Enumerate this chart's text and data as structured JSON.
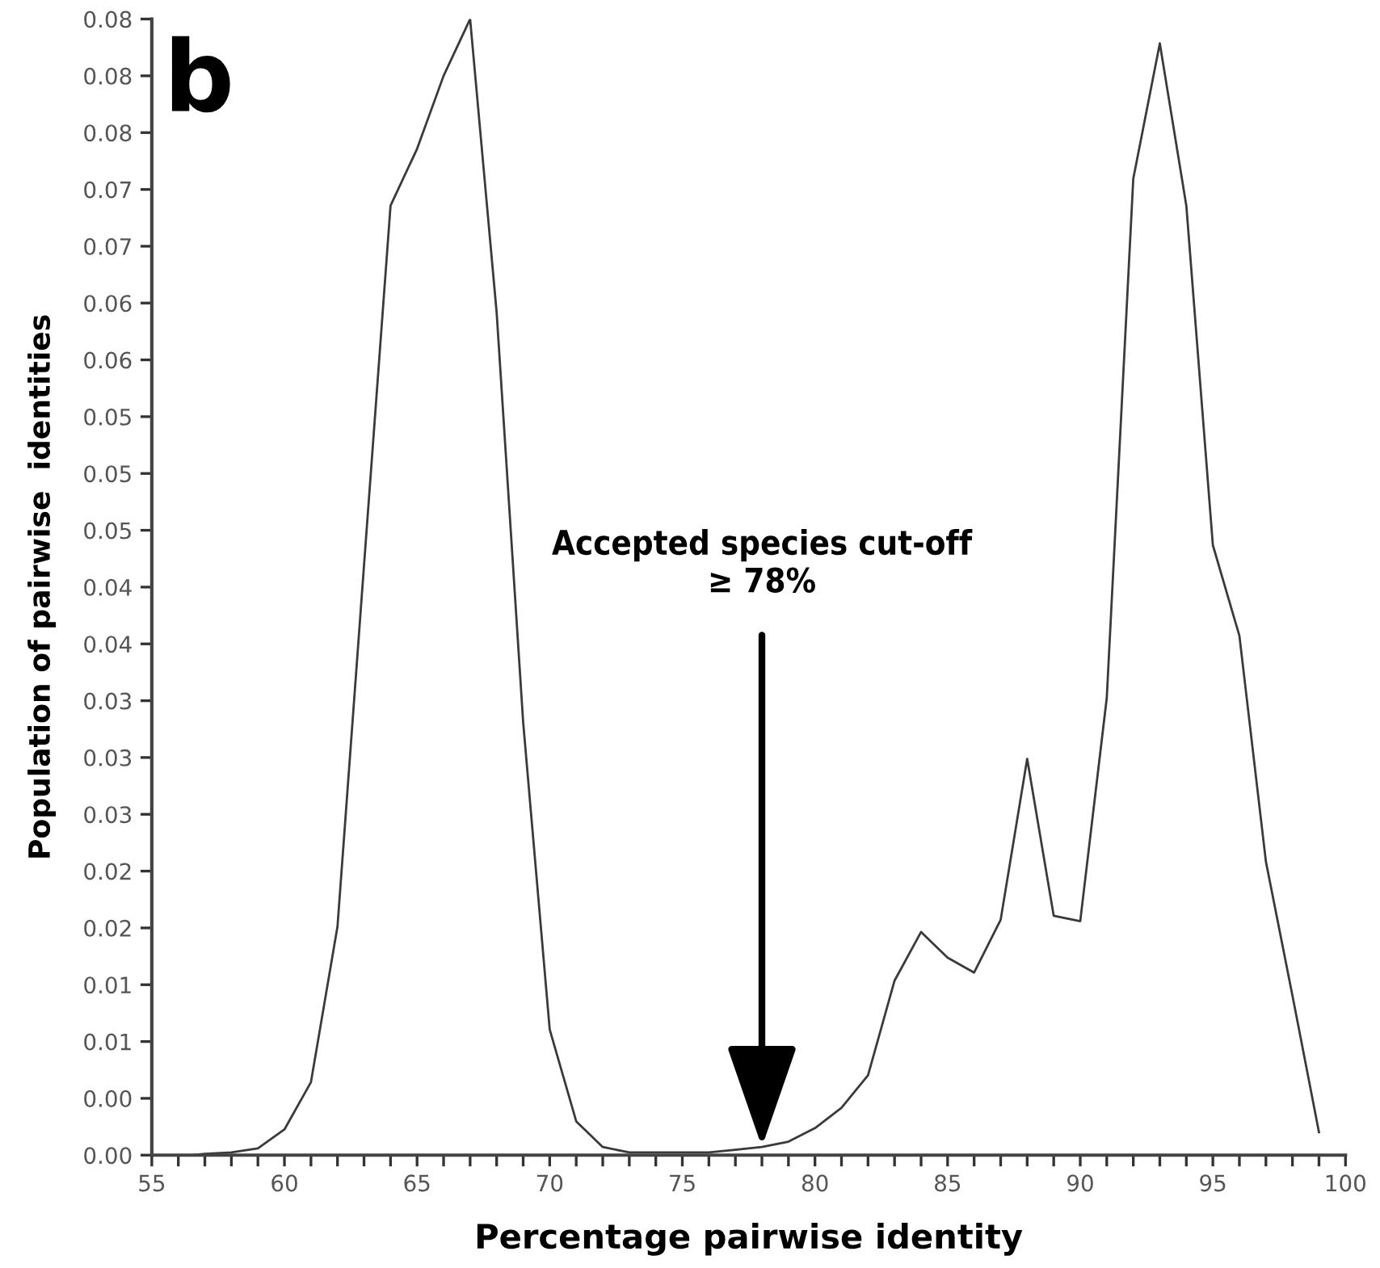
{
  "chart_data": {
    "type": "line",
    "xlabel": "Percentage pairwise identity",
    "ylabel": "Population of pairwise  identities",
    "annotations": [
      "b",
      {
        "text": "Accepted species cut-off\n≥ 78%",
        "x": 78,
        "y": 0.0006
      }
    ],
    "x": [
      56.5,
      57,
      58,
      59,
      60,
      61,
      62,
      63,
      64,
      65,
      66,
      67,
      68,
      69,
      70,
      71,
      72,
      73,
      74,
      75,
      76,
      77,
      78,
      79,
      80,
      81,
      82,
      83,
      84,
      85,
      86,
      87,
      88,
      89,
      90,
      91,
      92,
      93,
      94,
      95,
      96,
      97,
      98,
      99
    ],
    "series": [
      {
        "color": "#3a3a3a",
        "values": [
          0.0,
          0.0001,
          0.0002,
          0.0005,
          0.0019,
          0.0054,
          0.0169,
          0.0436,
          0.0702,
          0.0744,
          0.0798,
          0.084,
          0.0623,
          0.032,
          0.0093,
          0.0025,
          0.0006,
          0.0002,
          0.0002,
          0.0002,
          0.0002,
          0.0004,
          0.0006,
          0.001,
          0.002,
          0.0035,
          0.0059,
          0.0129,
          0.0165,
          0.0146,
          0.0135,
          0.0174,
          0.0293,
          0.0177,
          0.0173,
          0.0338,
          0.0722,
          0.0822,
          0.0702,
          0.0451,
          0.0384,
          0.0217,
          0.0118,
          0.0017
        ]
      }
    ],
    "xlim": [
      55,
      100
    ],
    "ylim": [
      0,
      0.084
    ],
    "xticks": [
      55,
      {
        "value": 56,
        "label": null
      },
      {
        "value": 57,
        "label": null
      },
      {
        "value": 58,
        "label": null
      },
      {
        "value": 59,
        "label": null
      },
      60,
      {
        "value": 61,
        "label": null
      },
      {
        "value": 62,
        "label": null
      },
      {
        "value": 63,
        "label": null
      },
      {
        "value": 64,
        "label": null
      },
      65,
      {
        "value": 66,
        "label": null
      },
      {
        "value": 67,
        "label": null
      },
      {
        "value": 68,
        "label": null
      },
      {
        "value": 69,
        "label": null
      },
      70,
      {
        "value": 71,
        "label": null
      },
      {
        "value": 72,
        "label": null
      },
      {
        "value": 73,
        "label": null
      },
      {
        "value": 74,
        "label": null
      },
      75,
      {
        "value": 76,
        "label": null
      },
      {
        "value": 77,
        "label": null
      },
      {
        "value": 78,
        "label": null
      },
      {
        "value": 79,
        "label": null
      },
      80,
      {
        "value": 81,
        "label": null
      },
      {
        "value": 82,
        "label": null
      },
      {
        "value": 83,
        "label": null
      },
      {
        "value": 84,
        "label": null
      },
      85,
      {
        "value": 86,
        "label": null
      },
      {
        "value": 87,
        "label": null
      },
      {
        "value": 88,
        "label": null
      },
      {
        "value": 89,
        "label": null
      },
      90,
      {
        "value": 91,
        "label": null
      },
      {
        "value": 92,
        "label": null
      },
      {
        "value": 93,
        "label": null
      },
      {
        "value": 94,
        "label": null
      },
      95,
      {
        "value": 96,
        "label": null
      },
      {
        "value": 97,
        "label": null
      },
      {
        "value": 98,
        "label": null
      },
      {
        "value": 99,
        "label": null
      },
      100
    ],
    "yticks": [
      {
        "value": 0,
        "label": "0.00"
      },
      {
        "value": 0.0042,
        "label": "0.00"
      },
      {
        "value": 0.0084,
        "label": "0.01"
      },
      {
        "value": 0.0126,
        "label": "0.01"
      },
      {
        "value": 0.0168,
        "label": "0.02"
      },
      {
        "value": 0.021,
        "label": "0.02"
      },
      {
        "value": 0.0252,
        "label": "0.03"
      },
      {
        "value": 0.0294,
        "label": "0.03"
      },
      {
        "value": 0.0336,
        "label": "0.03"
      },
      {
        "value": 0.0378,
        "label": "0.04"
      },
      {
        "value": 0.042,
        "label": "0.04"
      },
      {
        "value": 0.0462,
        "label": "0.05"
      },
      {
        "value": 0.0504,
        "label": "0.05"
      },
      {
        "value": 0.0546,
        "label": "0.05"
      },
      {
        "value": 0.0588,
        "label": "0.06"
      },
      {
        "value": 0.063,
        "label": "0.06"
      },
      {
        "value": 0.0672,
        "label": "0.07"
      },
      {
        "value": 0.0714,
        "label": "0.07"
      },
      {
        "value": 0.0756,
        "label": "0.08"
      },
      {
        "value": 0.0798,
        "label": "0.08"
      },
      {
        "value": 0.084,
        "label": "0.08"
      }
    ],
    "grid": false,
    "legend": false
  }
}
